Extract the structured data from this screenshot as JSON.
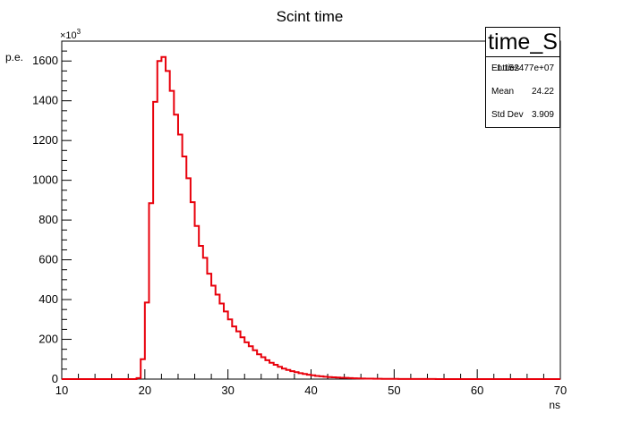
{
  "chart_data": {
    "type": "bar",
    "histogram": true,
    "title": "Scint time",
    "xlabel": "ns",
    "ylabel": "p.e.",
    "y_exponent_label": "×10",
    "y_exponent_power": "3",
    "xlim": [
      10,
      70
    ],
    "ylim": [
      0,
      1700
    ],
    "xticks": [
      10,
      20,
      30,
      40,
      50,
      60,
      70
    ],
    "yticks": [
      0,
      200,
      400,
      600,
      800,
      1000,
      1200,
      1400,
      1600
    ],
    "grid": false,
    "line_color": "#e8000b",
    "bin_width": 0.5,
    "x_start": 10,
    "values": [
      0,
      0,
      0,
      0,
      0,
      0,
      0,
      0,
      0,
      0,
      0,
      0,
      0,
      0,
      0,
      0,
      0,
      0,
      5,
      100,
      385,
      885,
      1395,
      1600,
      1620,
      1550,
      1450,
      1330,
      1230,
      1120,
      1010,
      890,
      770,
      670,
      610,
      530,
      470,
      425,
      380,
      340,
      300,
      265,
      240,
      210,
      185,
      165,
      145,
      125,
      110,
      95,
      82,
      72,
      62,
      53,
      46,
      40,
      35,
      30,
      26,
      22,
      19,
      16,
      14,
      12,
      10,
      9,
      8,
      7,
      6,
      5,
      4,
      3.5,
      3,
      2.5,
      2,
      1.8,
      1.5,
      1.3,
      1.1,
      1,
      0.9,
      0.8,
      0.7,
      0.6,
      0.5,
      0.5,
      0.4,
      0.4,
      0.3,
      0.3,
      0.2,
      0.2,
      0.2,
      0.1,
      0.1,
      0.1,
      0.1,
      0,
      0,
      0,
      0,
      0,
      0,
      0,
      0,
      0,
      0,
      0,
      0,
      0,
      0,
      0,
      0,
      0,
      0,
      0,
      0,
      0,
      0,
      0
    ],
    "stats_box": {
      "title": "time_S",
      "rows": [
        {
          "label": "Entries",
          "value": "1.152477e+07"
        },
        {
          "label": "Mean",
          "value": "24.22"
        },
        {
          "label": "Std Dev",
          "value": "3.909"
        }
      ]
    }
  }
}
